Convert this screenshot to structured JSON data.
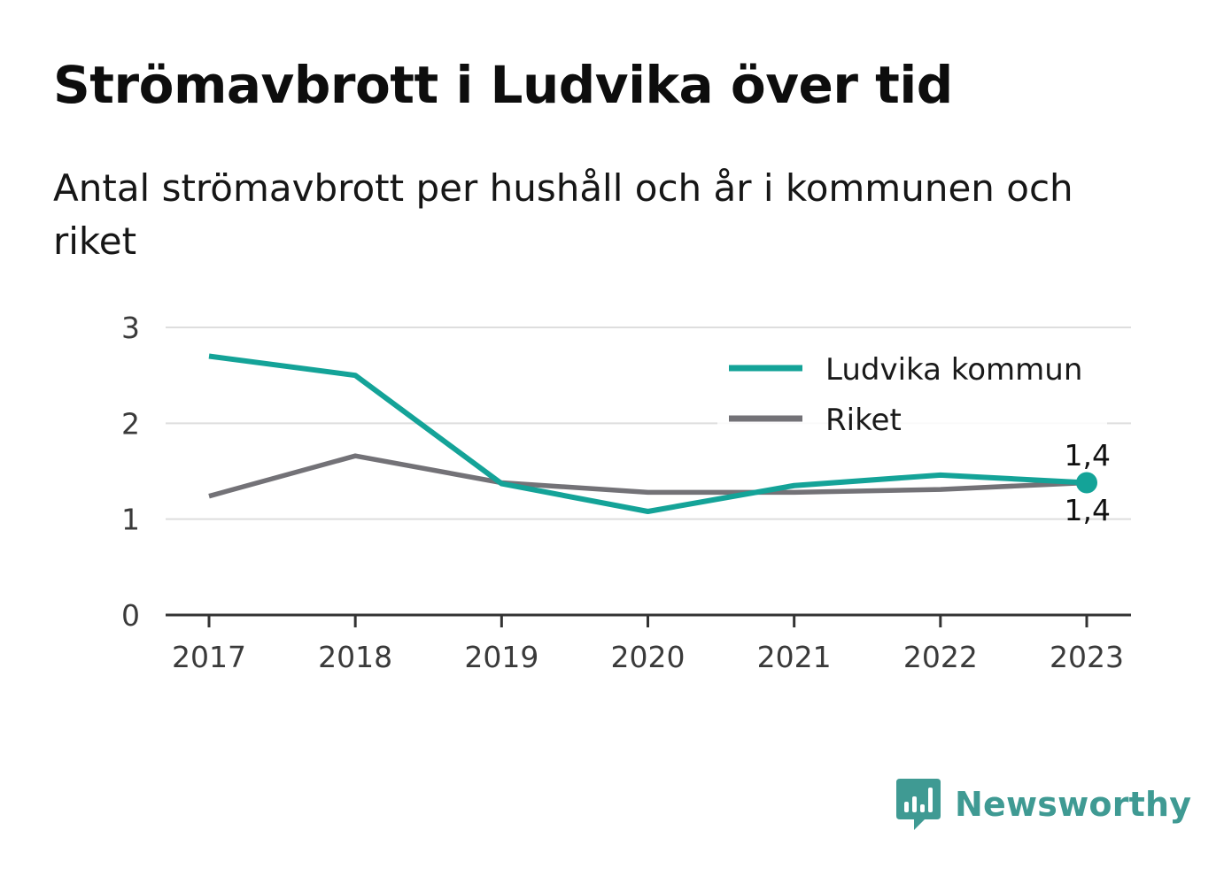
{
  "title": "Strömavbrott i Ludvika över tid",
  "subtitle": "Antal strömavbrott per hushåll och år i kommunen och riket",
  "brand": {
    "name": "Newsworthy",
    "color": "#3f9a93",
    "icon": "newsworthy-bar-chart-icon"
  },
  "chart_data": {
    "type": "line",
    "categories": [
      "2017",
      "2018",
      "2019",
      "2020",
      "2021",
      "2022",
      "2023"
    ],
    "series": [
      {
        "name": "Ludvika kommun",
        "color": "#14a398",
        "values": [
          2.7,
          2.5,
          1.37,
          1.08,
          1.35,
          1.46,
          1.38
        ]
      },
      {
        "name": "Riket",
        "color": "#737277",
        "values": [
          1.24,
          1.66,
          1.38,
          1.28,
          1.28,
          1.31,
          1.38
        ]
      }
    ],
    "ylim": [
      0,
      3
    ],
    "yticks": [
      0,
      1,
      2,
      3
    ],
    "grid": true,
    "legend_position": "top-right",
    "end_labels": [
      {
        "series": "Riket",
        "text": "1,4"
      },
      {
        "series": "Ludvika kommun",
        "text": "1,4"
      }
    ]
  }
}
